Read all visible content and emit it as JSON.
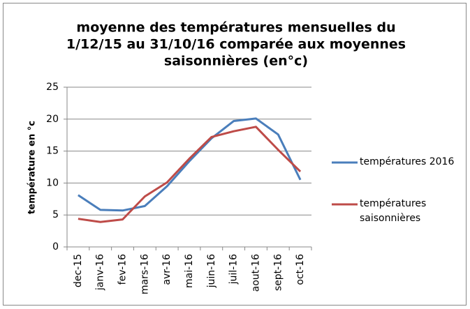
{
  "chart_data": {
    "type": "line",
    "title": [
      "moyenne des températures mensuelles du",
      "1/12/15 au 31/10/16 comparée aux moyennes",
      "saisonnières (en°c)"
    ],
    "y_label": "température en °c",
    "categories": [
      "dec-15",
      "janv-16",
      "fev-16",
      "mars-16",
      "avr-16",
      "mai-16",
      "juin-16",
      "juil-16",
      "aout-16",
      "sept-16",
      "oct-16"
    ],
    "series": [
      {
        "name": "températures 2016",
        "color": "#4a7ebb",
        "values": [
          8.1,
          5.8,
          5.7,
          6.4,
          9.5,
          13.4,
          17.0,
          19.7,
          20.1,
          17.6,
          10.5
        ]
      },
      {
        "name": "températures saisonnières",
        "color": "#be4b48",
        "values": [
          4.4,
          3.9,
          4.3,
          7.9,
          10.1,
          13.8,
          17.2,
          18.1,
          18.8,
          15.2,
          11.8
        ]
      }
    ],
    "ylim": [
      0,
      25
    ],
    "yticks": [
      0,
      5,
      10,
      15,
      20,
      25
    ],
    "grid": true,
    "legend": "right"
  }
}
